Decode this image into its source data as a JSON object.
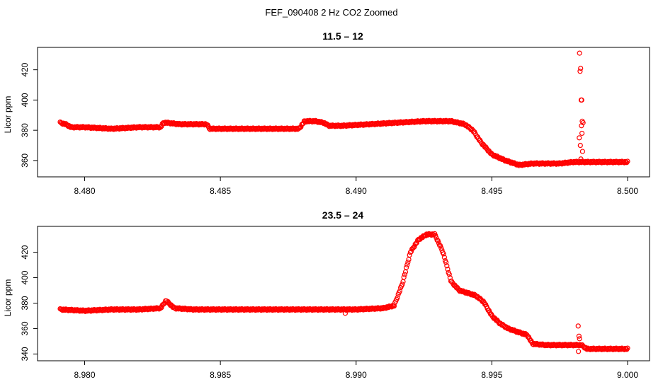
{
  "figure": {
    "title": "FEF_090408  2 Hz CO2 Zoomed"
  },
  "colors": {
    "points": "#ff0000",
    "axes": "#000000",
    "background": "#ffffff"
  },
  "chart_data": [
    {
      "type": "scatter",
      "title": "11.5 – 12",
      "xlabel": "",
      "ylabel": "Licor ppm",
      "xlim": [
        8.4791,
        8.5
      ],
      "ylim": [
        352,
        432
      ],
      "xticks": [
        8.48,
        8.485,
        8.49,
        8.495,
        8.5
      ],
      "xtick_labels": [
        "8.480",
        "8.485",
        "8.490",
        "8.495",
        "8.500"
      ],
      "yticks": [
        360,
        380,
        400,
        420
      ],
      "ytick_labels": [
        "360",
        "380",
        "400",
        "420"
      ],
      "grid": false,
      "marker": "open-circle",
      "series": [
        {
          "x": [
            8.4791,
            8.4793,
            8.4795,
            8.48,
            8.481,
            8.482,
            8.4828,
            8.4829,
            8.483,
            8.4835,
            8.4845,
            8.4846,
            8.485,
            8.486,
            8.487,
            8.4879,
            8.4881,
            8.4885,
            8.4888,
            8.489,
            8.4895,
            8.4905,
            8.4915,
            8.4925,
            8.4935,
            8.494,
            8.4943,
            8.4946,
            8.495,
            8.4955,
            8.496,
            8.4965,
            8.497,
            8.4975,
            8.498,
            8.4985,
            8.499,
            8.4995,
            8.5
          ],
          "y": [
            385,
            384,
            382,
            382,
            381,
            382,
            382,
            385,
            385,
            384,
            384,
            381,
            381,
            381,
            381,
            381,
            386,
            386,
            385,
            383,
            383,
            384,
            385,
            386,
            386,
            384,
            380,
            372,
            364,
            360,
            357,
            358,
            358,
            358,
            359,
            359,
            359,
            359,
            359
          ]
        }
      ],
      "outliers": {
        "x": [
          8.49823,
          8.49825,
          8.49827,
          8.49829,
          8.49831,
          8.49833,
          8.49836,
          8.49822,
          8.49826,
          8.4983,
          8.49834,
          8.49828,
          8.49832
        ],
        "y": [
          431,
          419,
          421,
          400,
          400,
          386,
          385,
          375,
          370,
          383,
          366,
          361,
          378
        ]
      }
    },
    {
      "type": "scatter",
      "title": "23.5 – 24",
      "xlabel": "",
      "ylabel": "Licor ppm",
      "xlim": [
        8.9791,
        9.0
      ],
      "ylim": [
        338,
        437
      ],
      "xticks": [
        8.98,
        8.985,
        8.99,
        8.995,
        9.0
      ],
      "xtick_labels": [
        "8.980",
        "8.985",
        "8.990",
        "8.995",
        "9.000"
      ],
      "yticks": [
        340,
        360,
        380,
        400,
        420
      ],
      "ytick_labels": [
        "340",
        "360",
        "380",
        "400",
        "420"
      ],
      "grid": false,
      "marker": "open-circle",
      "series": [
        {
          "x": [
            8.9791,
            8.98,
            8.981,
            8.982,
            8.9828,
            8.983,
            8.9831,
            8.9833,
            8.984,
            8.986,
            8.988,
            8.99,
            8.991,
            8.9914,
            8.9917,
            8.992,
            8.9923,
            8.9926,
            8.9929,
            8.9932,
            8.9935,
            8.9938,
            8.9941,
            8.9944,
            8.9947,
            8.995,
            8.9953,
            8.9956,
            8.996,
            8.9963,
            8.9965,
            8.997,
            8.9975,
            8.998,
            8.9983,
            8.9985,
            8.999,
            8.9995,
            9.0
          ],
          "y": [
            375,
            374,
            375,
            375,
            376,
            382,
            380,
            376,
            375,
            375,
            375,
            375,
            376,
            378,
            395,
            420,
            430,
            434,
            434,
            420,
            397,
            390,
            388,
            386,
            381,
            370,
            364,
            360,
            357,
            355,
            348,
            347,
            347,
            347,
            347,
            344,
            344,
            344,
            344
          ]
        }
      ],
      "outliers": {
        "x": [
          8.99818,
          8.99821,
          8.99823,
          8.99819,
          8.9896
        ],
        "y": [
          362,
          354,
          352,
          342,
          372
        ]
      }
    }
  ]
}
